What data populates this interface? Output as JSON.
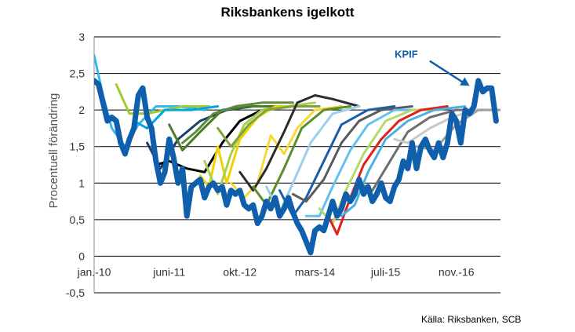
{
  "chart_data": {
    "type": "line",
    "title": "Riksbankens igelkott",
    "ylabel": "Procentuell förändring",
    "xlabel": "",
    "source": "Källa: Riksbanken, SCB",
    "ylim": [
      -0.5,
      3
    ],
    "yticks": [
      "-0,5",
      "0",
      "0,5",
      "1",
      "1,5",
      "2",
      "2,5",
      "3"
    ],
    "ytick_values": [
      -0.5,
      0,
      0.5,
      1,
      1.5,
      2,
      2.5,
      3
    ],
    "grid": true,
    "x_start": "2010-01",
    "x_end": "2017-09",
    "xticks": [
      "jan.-10",
      "juni-11",
      "okt.-12",
      "mars-14",
      "juli-15",
      "nov.-16"
    ],
    "xtick_dates": [
      "2010-01",
      "2011-06",
      "2012-10",
      "2014-03",
      "2015-07",
      "2016-11"
    ],
    "annotation": {
      "text": "KPIF",
      "color": "#0f5fad",
      "arrow_from": [
        "2016-05",
        2.67
      ],
      "arrow_to": [
        "2017-02",
        2.33
      ]
    },
    "kpif": {
      "name": "KPIF",
      "color": "#0f5fad",
      "points": [
        [
          "2010-01",
          2.4
        ],
        [
          "2010-02",
          2.35
        ],
        [
          "2010-03",
          2.1
        ],
        [
          "2010-04",
          1.85
        ],
        [
          "2010-05",
          1.9
        ],
        [
          "2010-06",
          1.85
        ],
        [
          "2010-07",
          1.55
        ],
        [
          "2010-08",
          1.4
        ],
        [
          "2010-09",
          1.6
        ],
        [
          "2010-10",
          1.75
        ],
        [
          "2010-11",
          2.2
        ],
        [
          "2010-12",
          2.3
        ],
        [
          "2011-01",
          1.9
        ],
        [
          "2011-02",
          1.75
        ],
        [
          "2011-03",
          1.3
        ],
        [
          "2011-04",
          1.0
        ],
        [
          "2011-05",
          1.15
        ],
        [
          "2011-06",
          1.6
        ],
        [
          "2011-07",
          1.35
        ],
        [
          "2011-08",
          1.0
        ],
        [
          "2011-09",
          1.2
        ],
        [
          "2011-10",
          0.55
        ],
        [
          "2011-11",
          0.95
        ],
        [
          "2011-12",
          1.0
        ],
        [
          "2012-01",
          1.05
        ],
        [
          "2012-02",
          0.8
        ],
        [
          "2012-03",
          0.95
        ],
        [
          "2012-04",
          1.0
        ],
        [
          "2012-05",
          0.9
        ],
        [
          "2012-06",
          0.95
        ],
        [
          "2012-07",
          0.7
        ],
        [
          "2012-08",
          0.9
        ],
        [
          "2012-09",
          0.85
        ],
        [
          "2012-10",
          0.9
        ],
        [
          "2012-11",
          0.7
        ],
        [
          "2012-12",
          0.65
        ],
        [
          "2013-01",
          0.7
        ],
        [
          "2013-02",
          0.45
        ],
        [
          "2013-03",
          0.55
        ],
        [
          "2013-04",
          0.75
        ],
        [
          "2013-05",
          0.65
        ],
        [
          "2013-06",
          0.8
        ],
        [
          "2013-07",
          0.55
        ],
        [
          "2013-08",
          0.65
        ],
        [
          "2013-09",
          0.8
        ],
        [
          "2013-10",
          0.6
        ],
        [
          "2013-11",
          0.45
        ],
        [
          "2013-12",
          0.35
        ],
        [
          "2014-01",
          0.2
        ],
        [
          "2014-02",
          0.05
        ],
        [
          "2014-03",
          0.35
        ],
        [
          "2014-04",
          0.4
        ],
        [
          "2014-05",
          0.35
        ],
        [
          "2014-06",
          0.55
        ],
        [
          "2014-07",
          0.75
        ],
        [
          "2014-08",
          0.55
        ],
        [
          "2014-09",
          0.65
        ],
        [
          "2014-10",
          0.85
        ],
        [
          "2014-11",
          0.75
        ],
        [
          "2014-12",
          0.85
        ],
        [
          "2015-01",
          1.05
        ],
        [
          "2015-02",
          0.85
        ],
        [
          "2015-03",
          0.95
        ],
        [
          "2015-04",
          0.75
        ],
        [
          "2015-05",
          0.85
        ],
        [
          "2015-06",
          1.0
        ],
        [
          "2015-07",
          0.8
        ],
        [
          "2015-08",
          0.75
        ],
        [
          "2015-09",
          0.95
        ],
        [
          "2015-10",
          1.05
        ],
        [
          "2015-11",
          1.3
        ],
        [
          "2015-12",
          1.2
        ],
        [
          "2016-01",
          1.55
        ],
        [
          "2016-02",
          1.2
        ],
        [
          "2016-03",
          1.5
        ],
        [
          "2016-04",
          1.6
        ],
        [
          "2016-05",
          1.45
        ],
        [
          "2016-06",
          1.35
        ],
        [
          "2016-07",
          1.55
        ],
        [
          "2016-08",
          1.35
        ],
        [
          "2016-09",
          1.55
        ],
        [
          "2016-10",
          1.95
        ],
        [
          "2016-11",
          1.85
        ],
        [
          "2016-12",
          1.55
        ],
        [
          "2017-01",
          2.0
        ],
        [
          "2017-02",
          1.95
        ],
        [
          "2017-03",
          2.05
        ],
        [
          "2017-04",
          2.4
        ],
        [
          "2017-05",
          2.25
        ],
        [
          "2017-06",
          2.3
        ],
        [
          "2017-07",
          2.3
        ],
        [
          "2017-08",
          1.85
        ]
      ]
    },
    "forecasts": [
      {
        "color": "#35b9e9",
        "points": [
          [
            "2010-01",
            2.75
          ],
          [
            "2010-03",
            2.2
          ],
          [
            "2010-05",
            1.75
          ],
          [
            "2010-08",
            1.5
          ],
          [
            "2010-11",
            1.8
          ],
          [
            "2011-03",
            2.05
          ],
          [
            "2011-08",
            2.05
          ],
          [
            "2012-02",
            2.0
          ]
        ]
      },
      {
        "color": "#9acd32",
        "points": [
          [
            "2010-06",
            2.35
          ],
          [
            "2010-09",
            1.95
          ],
          [
            "2011-01",
            1.95
          ],
          [
            "2011-05",
            2.0
          ],
          [
            "2011-09",
            2.05
          ],
          [
            "2012-03",
            2.05
          ]
        ]
      },
      {
        "color": "#00a5e3",
        "points": [
          [
            "2010-10",
            1.85
          ],
          [
            "2011-01",
            1.75
          ],
          [
            "2011-05",
            2.0
          ],
          [
            "2011-11",
            2.0
          ],
          [
            "2012-05",
            2.05
          ]
        ]
      },
      {
        "color": "#1b3d6d",
        "points": [
          [
            "2011-01",
            1.55
          ],
          [
            "2011-04",
            1.2
          ],
          [
            "2011-08",
            1.6
          ],
          [
            "2012-01",
            1.85
          ],
          [
            "2012-07",
            2.0
          ],
          [
            "2013-01",
            2.05
          ]
        ]
      },
      {
        "color": "#000000",
        "points": [
          [
            "2011-03",
            1.25
          ],
          [
            "2011-06",
            1.3
          ],
          [
            "2011-10",
            1.2
          ],
          [
            "2012-02",
            1.15
          ],
          [
            "2012-06",
            1.55
          ],
          [
            "2012-10",
            1.85
          ],
          [
            "2013-03",
            2.0
          ],
          [
            "2013-09",
            2.05
          ]
        ]
      },
      {
        "color": "#4a7a2a",
        "points": [
          [
            "2011-06",
            1.8
          ],
          [
            "2011-09",
            1.45
          ],
          [
            "2012-01",
            1.7
          ],
          [
            "2012-06",
            2.0
          ],
          [
            "2012-12",
            2.05
          ],
          [
            "2013-06",
            2.05
          ]
        ]
      },
      {
        "color": "#5f8c3a",
        "points": [
          [
            "2011-09",
            1.55
          ],
          [
            "2011-12",
            1.7
          ],
          [
            "2012-04",
            1.95
          ],
          [
            "2012-09",
            2.05
          ],
          [
            "2013-03",
            2.1
          ],
          [
            "2013-10",
            2.1
          ]
        ]
      },
      {
        "color": "#f2d200",
        "points": [
          [
            "2012-01",
            1.1
          ],
          [
            "2012-03",
            0.95
          ],
          [
            "2012-05",
            1.5
          ],
          [
            "2012-07",
            1.0
          ],
          [
            "2012-10",
            1.6
          ],
          [
            "2013-02",
            1.9
          ],
          [
            "2013-06",
            2.05
          ],
          [
            "2013-12",
            2.05
          ]
        ]
      },
      {
        "color": "#a8d050",
        "points": [
          [
            "2012-02",
            1.3
          ],
          [
            "2012-05",
            0.85
          ],
          [
            "2012-08",
            1.4
          ],
          [
            "2012-11",
            1.8
          ],
          [
            "2013-03",
            2.0
          ],
          [
            "2013-09",
            2.05
          ],
          [
            "2014-03",
            2.1
          ]
        ]
      },
      {
        "color": "#7da53a",
        "points": [
          [
            "2012-05",
            1.75
          ],
          [
            "2012-08",
            1.5
          ],
          [
            "2012-12",
            1.8
          ],
          [
            "2013-04",
            2.0
          ],
          [
            "2013-10",
            2.05
          ],
          [
            "2014-04",
            2.05
          ]
        ]
      },
      {
        "color": "#f7d83a",
        "points": [
          [
            "2012-08",
            1.0
          ],
          [
            "2012-11",
            0.8
          ],
          [
            "2013-02",
            1.0
          ],
          [
            "2013-05",
            1.65
          ],
          [
            "2013-08",
            1.4
          ],
          [
            "2013-11",
            1.75
          ],
          [
            "2014-03",
            2.0
          ],
          [
            "2014-09",
            2.05
          ]
        ]
      },
      {
        "color": "#2d2d2d",
        "points": [
          [
            "2012-10",
            1.15
          ],
          [
            "2013-01",
            0.9
          ],
          [
            "2013-04",
            1.2
          ],
          [
            "2013-08",
            1.7
          ],
          [
            "2013-11",
            2.1
          ],
          [
            "2014-03",
            2.2
          ],
          [
            "2014-07",
            2.15
          ],
          [
            "2015-01",
            2.05
          ]
        ]
      },
      {
        "color": "#5b8d2b",
        "points": [
          [
            "2013-01",
            0.95
          ],
          [
            "2013-04",
            0.7
          ],
          [
            "2013-08",
            1.2
          ],
          [
            "2013-12",
            1.75
          ],
          [
            "2014-05",
            2.0
          ],
          [
            "2014-11",
            2.05
          ]
        ]
      },
      {
        "color": "#9ad0e8",
        "points": [
          [
            "2013-04",
            0.95
          ],
          [
            "2013-07",
            0.6
          ],
          [
            "2013-10",
            1.0
          ],
          [
            "2014-02",
            1.55
          ],
          [
            "2014-07",
            1.95
          ],
          [
            "2015-01",
            2.05
          ]
        ]
      },
      {
        "color": "#1a5ea8",
        "points": [
          [
            "2013-07",
            0.9
          ],
          [
            "2013-10",
            0.55
          ],
          [
            "2014-01",
            0.8
          ],
          [
            "2014-05",
            1.3
          ],
          [
            "2014-09",
            1.8
          ],
          [
            "2015-03",
            2.0
          ],
          [
            "2015-09",
            2.05
          ]
        ]
      },
      {
        "color": "#5a5a5a",
        "points": [
          [
            "2013-10",
            0.85
          ],
          [
            "2014-01",
            0.75
          ],
          [
            "2014-05",
            1.05
          ],
          [
            "2014-09",
            1.55
          ],
          [
            "2015-01",
            1.85
          ],
          [
            "2015-06",
            2.0
          ],
          [
            "2016-01",
            2.05
          ]
        ]
      },
      {
        "color": "#64c1ef",
        "points": [
          [
            "2014-01",
            0.55
          ],
          [
            "2014-04",
            0.55
          ],
          [
            "2014-07",
            0.95
          ],
          [
            "2014-11",
            1.45
          ],
          [
            "2015-03",
            1.8
          ],
          [
            "2015-09",
            2.0
          ],
          [
            "2016-03",
            2.0
          ]
        ]
      },
      {
        "color": "#b5d96b",
        "points": [
          [
            "2014-04",
            0.65
          ],
          [
            "2014-07",
            0.45
          ],
          [
            "2014-10",
            0.9
          ],
          [
            "2015-02",
            1.4
          ],
          [
            "2015-07",
            1.85
          ],
          [
            "2016-01",
            2.0
          ],
          [
            "2016-07",
            2.0
          ]
        ]
      },
      {
        "color": "#e0201b",
        "points": [
          [
            "2014-06",
            0.55
          ],
          [
            "2014-08",
            0.3
          ],
          [
            "2014-11",
            0.8
          ],
          [
            "2015-02",
            1.25
          ],
          [
            "2015-06",
            1.6
          ],
          [
            "2015-10",
            1.85
          ],
          [
            "2016-03",
            2.0
          ],
          [
            "2016-09",
            2.05
          ]
        ]
      },
      {
        "color": "#4bb0e0",
        "points": [
          [
            "2014-09",
            0.55
          ],
          [
            "2014-12",
            0.7
          ],
          [
            "2015-03",
            1.15
          ],
          [
            "2015-07",
            1.6
          ],
          [
            "2015-12",
            1.85
          ],
          [
            "2016-06",
            2.0
          ],
          [
            "2017-01",
            2.05
          ]
        ]
      },
      {
        "color": "#6e6e6e",
        "points": [
          [
            "2015-01",
            1.0
          ],
          [
            "2015-04",
            0.9
          ],
          [
            "2015-08",
            1.3
          ],
          [
            "2015-12",
            1.7
          ],
          [
            "2016-05",
            1.9
          ],
          [
            "2016-11",
            2.0
          ],
          [
            "2017-05",
            2.0
          ]
        ]
      },
      {
        "color": "#c8c8c8",
        "points": [
          [
            "2015-09",
            1.6
          ],
          [
            "2015-12",
            1.55
          ],
          [
            "2016-05",
            1.75
          ],
          [
            "2016-10",
            1.9
          ],
          [
            "2017-03",
            2.0
          ],
          [
            "2017-09",
            2.0
          ]
        ]
      },
      {
        "color": "#9e9e9e",
        "points": [
          [
            "2016-02",
            1.5
          ],
          [
            "2016-06",
            1.45
          ],
          [
            "2016-11",
            1.8
          ],
          [
            "2017-04",
            2.0
          ],
          [
            "2017-09",
            2.0
          ]
        ]
      }
    ]
  }
}
